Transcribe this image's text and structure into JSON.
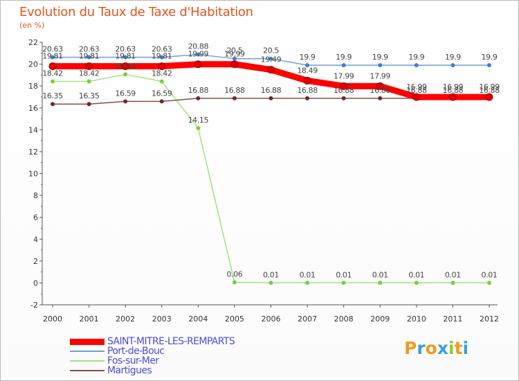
{
  "chart_data": {
    "type": "line",
    "title": "Evolution du Taux de Taxe d'Habitation",
    "ylabel": "(en %)",
    "xlabel": "",
    "x": [
      "2000",
      "2001",
      "2002",
      "2003",
      "2004",
      "2005",
      "2006",
      "2007",
      "2008",
      "2009",
      "2010",
      "2011",
      "2012"
    ],
    "ylim": [
      -2,
      22
    ],
    "yticks": [
      "-2",
      "0",
      "2",
      "4",
      "6",
      "8",
      "10",
      "12",
      "14",
      "16",
      "18",
      "20",
      "22"
    ],
    "series": [
      {
        "name": "Port-de-Bouc",
        "color": "#6d9fd7",
        "marker": "#3f7fcc",
        "width": 1.5,
        "values": [
          20.63,
          20.63,
          20.63,
          20.63,
          20.88,
          20.5,
          20.5,
          19.9,
          19.9,
          19.9,
          19.9,
          19.9,
          19.9
        ],
        "labels": [
          "20.63",
          "20.63",
          "20.63",
          "20.63",
          "20.88",
          "20.5",
          "20.5",
          "19.9",
          "19.9",
          "19.9",
          "19.9",
          "19.9",
          "19.9"
        ]
      },
      {
        "name": "Fos-sur-Mer",
        "color": "#a5e27a",
        "marker": "#7fcb3f",
        "width": 1.5,
        "values": [
          18.42,
          18.42,
          19.06,
          18.42,
          14.15,
          0.06,
          0.01,
          0.01,
          0.01,
          0.01,
          0.01,
          0.01,
          0.01
        ],
        "labels": [
          "18.42",
          "18.42",
          "19.06",
          "18.42",
          "14.15",
          "0.06",
          "0.01",
          "0.01",
          "0.01",
          "0.01",
          "0.01",
          "0.01",
          "0.01"
        ]
      },
      {
        "name": "Martigues",
        "color": "#8b4a4a",
        "marker": "#6e2a2a",
        "width": 1.5,
        "values": [
          16.35,
          16.35,
          16.59,
          16.59,
          16.88,
          16.88,
          16.88,
          16.88,
          16.88,
          16.88,
          16.88,
          16.88,
          16.88
        ],
        "labels": [
          "16.35",
          "16.35",
          "16.59",
          "16.59",
          "16.88",
          "16.88",
          "16.88",
          "16.88",
          "16.88",
          "16.88",
          "16.88",
          "16.88",
          "16.88"
        ]
      },
      {
        "name": "SAINT-MITRE-LES-REMPARTS",
        "color": "#ff0000",
        "marker": "#e00000",
        "width": 9,
        "values": [
          19.81,
          19.81,
          19.81,
          19.81,
          19.99,
          19.99,
          19.49,
          18.49,
          17.99,
          17.99,
          16.99,
          16.99,
          16.99
        ],
        "labels": [
          "19.81",
          "19.81",
          "19.81",
          "19.81",
          "19.99",
          "19.99",
          "19.49",
          "18.49",
          "17.99",
          "17.99",
          "16.99",
          "16.99",
          "16.99"
        ]
      }
    ],
    "legend_order": [
      "SAINT-MITRE-LES-REMPARTS",
      "Port-de-Bouc",
      "Fos-sur-Mer",
      "Martigues"
    ],
    "legend_position": "bottom-left",
    "grid": false
  },
  "logo": {
    "letters": [
      "P",
      "r",
      "o",
      "x",
      "i",
      "t",
      "i"
    ],
    "colors": [
      "#f29b1e",
      "#3aa0d8",
      "#f29b1e",
      "#3aa0d8",
      "#9bc43a",
      "#f29b1e",
      "#3aa0d8"
    ]
  }
}
